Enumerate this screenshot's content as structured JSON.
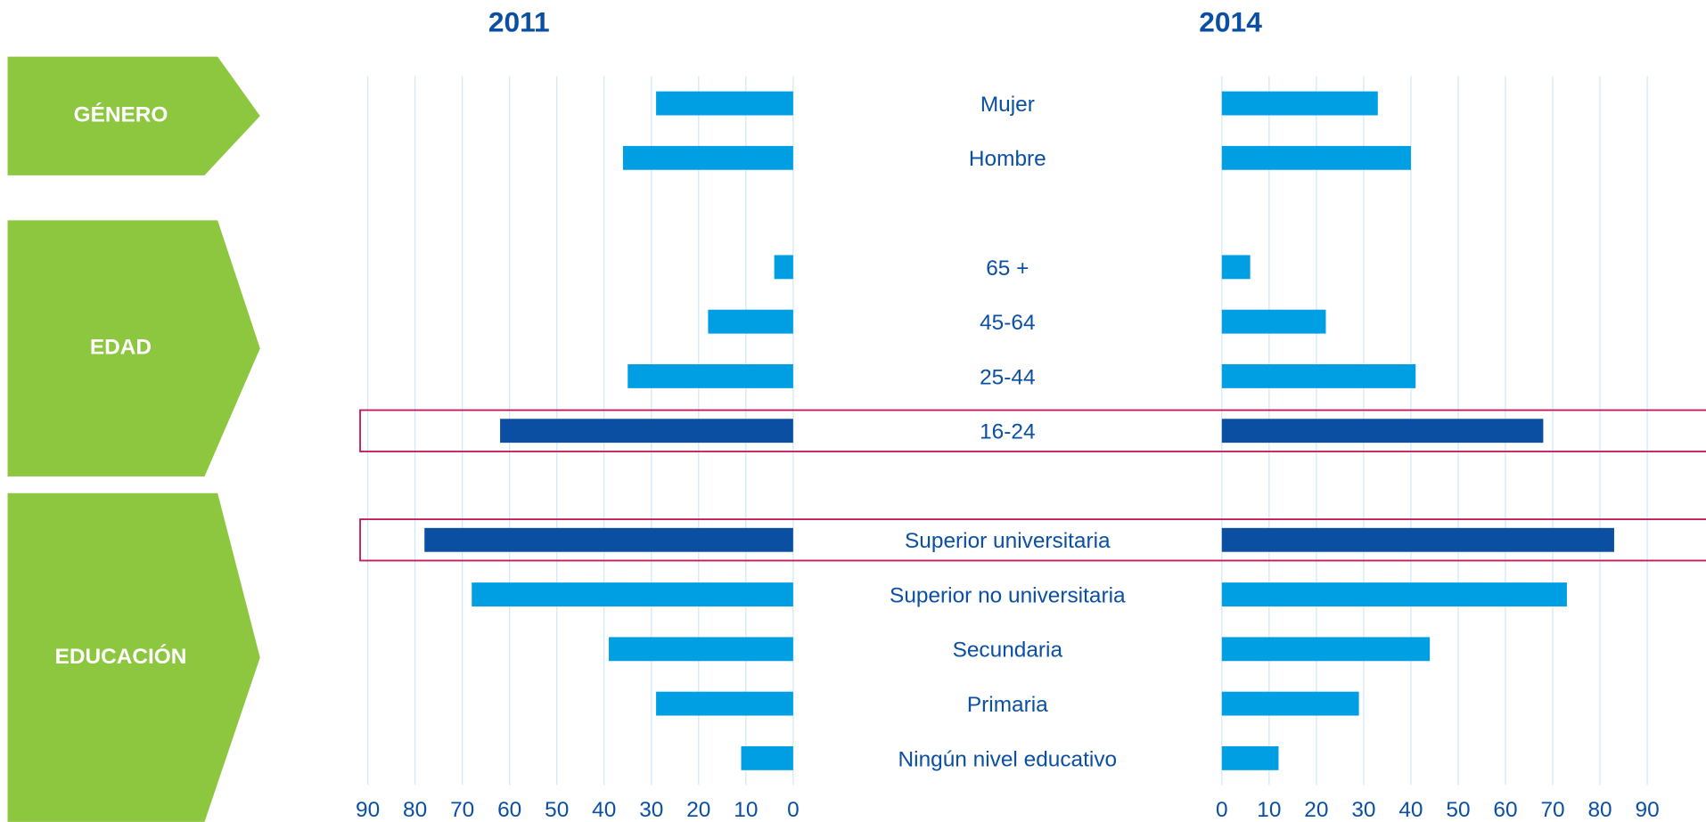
{
  "chart_data": {
    "type": "butterfly_bar",
    "groups": [
      {
        "label": "GÉNERO",
        "categories": [
          "Mujer",
          "Hombre"
        ]
      },
      {
        "label": "EDAD",
        "categories": [
          "65 +",
          "45-64",
          "25-44",
          "16-24"
        ]
      },
      {
        "label": "EDUCACIÓN",
        "categories": [
          "Superior universitaria",
          "Superior no universitaria",
          "Secundaria",
          "Primaria",
          "Ningún nivel educativo"
        ]
      }
    ],
    "highlighted": [
      false,
      false,
      false,
      false,
      false,
      true,
      true,
      false,
      false,
      false,
      false
    ],
    "series": [
      {
        "name": "2011",
        "color": "#009fe3",
        "highlight_color": "#0b4fa3",
        "values": [
          29,
          36,
          4,
          18,
          35,
          62,
          78,
          68,
          39,
          29,
          11
        ]
      },
      {
        "name": "2014",
        "color": "#009fe3",
        "highlight_color": "#0b4fa3",
        "values": [
          33,
          40,
          6,
          22,
          41,
          68,
          83,
          73,
          44,
          29,
          12
        ]
      }
    ],
    "xlim": [
      0,
      90
    ],
    "xticks": [
      0,
      10,
      20,
      30,
      40,
      50,
      60,
      70,
      80,
      90
    ],
    "grid": true
  }
}
